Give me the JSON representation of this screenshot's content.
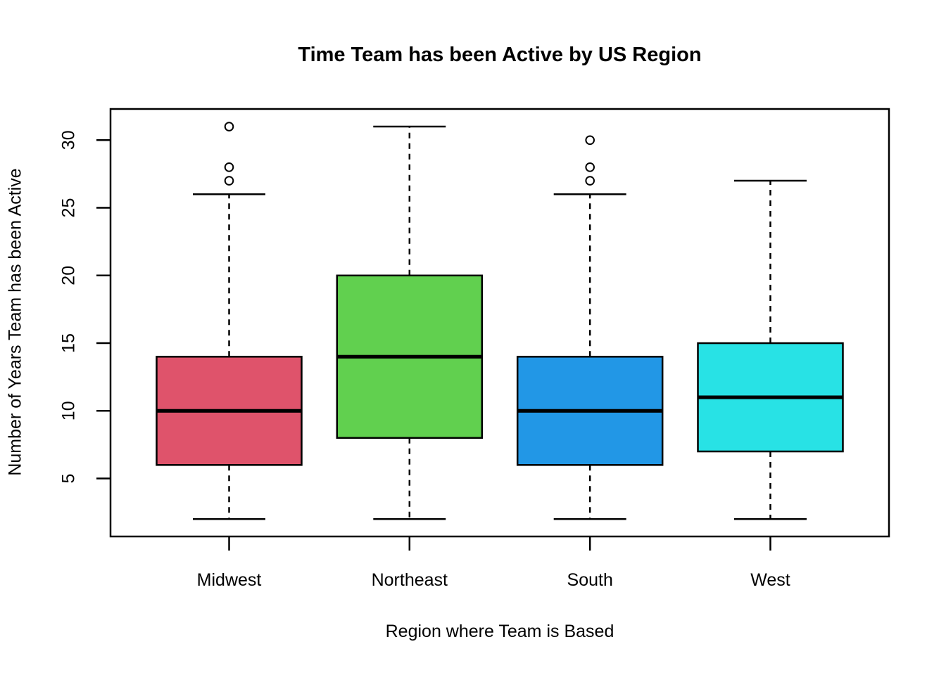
{
  "chart_data": {
    "type": "boxplot",
    "title": "Time Team has been Active by US Region",
    "xlabel": "Region where Team is Based",
    "ylabel": "Number of Years Team has been Active",
    "categories": [
      "Midwest",
      "Northeast",
      "South",
      "West"
    ],
    "y_ticks": [
      5,
      10,
      15,
      20,
      25,
      30
    ],
    "ylim": [
      2,
      31
    ],
    "grid": false,
    "legend": "none",
    "axis_color": "#000000",
    "background": "#FFFFFF",
    "series": [
      {
        "name": "Midwest",
        "color": "#DF536B",
        "whisker_low": 2,
        "q1": 6,
        "median": 10,
        "q3": 14,
        "whisker_high": 26,
        "outliers": [
          27,
          28,
          31
        ]
      },
      {
        "name": "Northeast",
        "color": "#61D04F",
        "whisker_low": 2,
        "q1": 8,
        "median": 14,
        "q3": 20,
        "whisker_high": 31,
        "outliers": []
      },
      {
        "name": "South",
        "color": "#2297E6",
        "whisker_low": 2,
        "q1": 6,
        "median": 10,
        "q3": 14,
        "whisker_high": 26,
        "outliers": [
          27,
          28,
          30
        ]
      },
      {
        "name": "West",
        "color": "#28E2E5",
        "whisker_low": 2,
        "q1": 7,
        "median": 11,
        "q3": 15,
        "whisker_high": 27,
        "outliers": []
      }
    ]
  }
}
